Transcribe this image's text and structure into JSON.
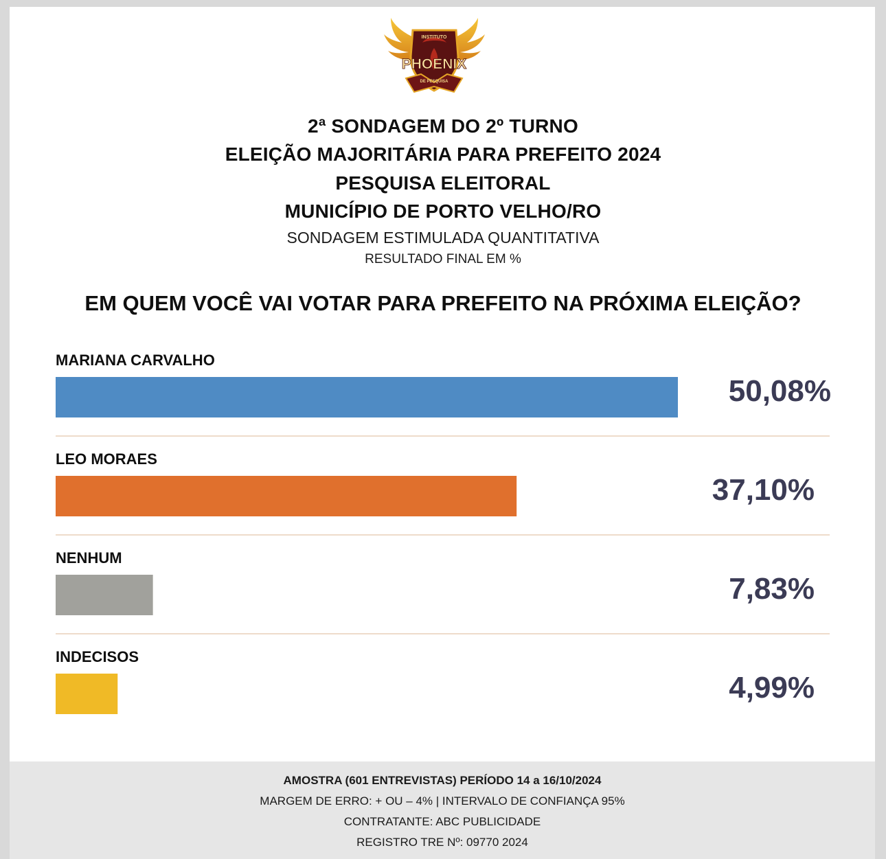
{
  "logo": {
    "top_text": "INSTITUTO",
    "name": "PHOENIX",
    "bottom_text": "DE PESQUISA"
  },
  "header": {
    "line1": "2ª SONDAGEM DO 2º TURNO",
    "line2": "ELEIÇÃO MAJORITÁRIA PARA PREFEITO 2024",
    "line3": "PESQUISA ELEITORAL",
    "line4": "MUNICÍPIO DE PORTO VELHO/RO",
    "subtitle": "SONDAGEM ESTIMULADA QUANTITATIVA",
    "note": "RESULTADO FINAL EM %"
  },
  "question": "EM QUEM VOCÊ VAI VOTAR PARA PREFEITO NA PRÓXIMA ELEIÇÃO?",
  "chart_data": {
    "type": "bar",
    "orientation": "horizontal",
    "categories": [
      "MARIANA CARVALHO",
      "LEO MORAES",
      "NENHUM",
      "INDECISOS"
    ],
    "values": [
      50.08,
      37.1,
      7.83,
      4.99
    ],
    "value_labels": [
      "50,08%",
      "37,10%",
      "7,83%",
      "4,99%"
    ],
    "colors": [
      "#4f8bc4",
      "#e0702d",
      "#a1a19c",
      "#f0ba26"
    ],
    "unit": "%",
    "grid": false,
    "legend": "none"
  },
  "footer": {
    "line1": "AMOSTRA (601 ENTREVISTAS) PERÍODO 14 a 16/10/2024",
    "line2": "MARGEM DE ERRO: + OU – 4% | INTERVALO DE CONFIANÇA 95%",
    "line3": "CONTRATANTE: ABC PUBLICIDADE",
    "line4": "REGISTRO TRE Nº: 09770 2024"
  },
  "colors": {
    "value_text": "#3b3b55",
    "separator": "#e8cfb8",
    "footer_bg": "#e6e6e6"
  }
}
